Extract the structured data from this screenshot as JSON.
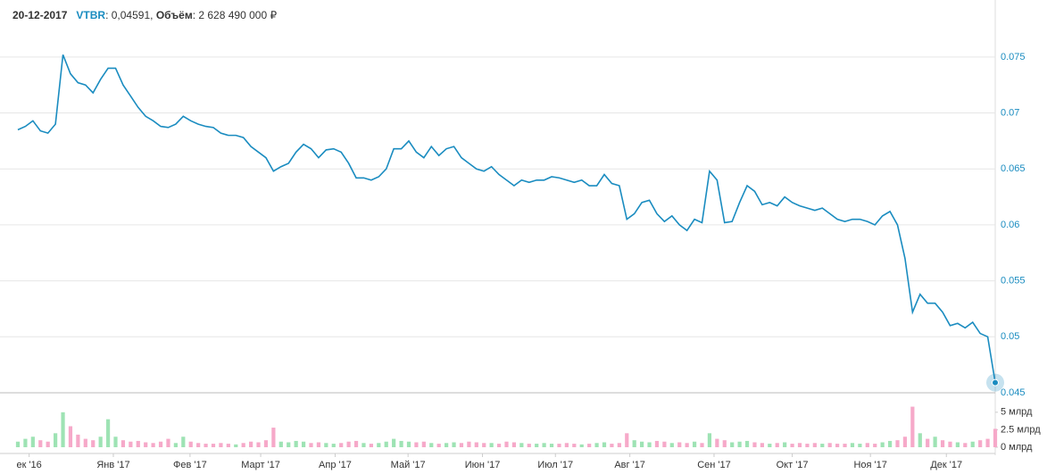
{
  "chart_data": {
    "type": "line",
    "header": {
      "date": "20-12-2017",
      "ticker": "VTBR",
      "price_text": ": 0,04591,",
      "volume_label": "Объём",
      "volume_text": ": 2 628 490 000 ₽"
    },
    "xlim": [
      0,
      130
    ],
    "xticks": [
      {
        "value": 1.5,
        "label": "ек '16"
      },
      {
        "value": 12.7,
        "label": "Янв '17"
      },
      {
        "value": 22.9,
        "label": "Фев '17"
      },
      {
        "value": 32.3,
        "label": "Март '17"
      },
      {
        "value": 42.2,
        "label": "Апр '17"
      },
      {
        "value": 51.9,
        "label": "Май '17"
      },
      {
        "value": 61.8,
        "label": "Июн '17"
      },
      {
        "value": 71.5,
        "label": "Июл '17"
      },
      {
        "value": 81.4,
        "label": "Авг '17"
      },
      {
        "value": 92.6,
        "label": "Сен '17"
      },
      {
        "value": 103,
        "label": "Окт '17"
      },
      {
        "value": 113.4,
        "label": "Ноя '17"
      },
      {
        "value": 123.5,
        "label": "Дек '17"
      }
    ],
    "ylim": [
      0.045,
      0.0777
    ],
    "yticks": [
      0.045,
      0.05,
      0.055,
      0.06,
      0.065,
      0.07,
      0.075
    ],
    "y2lim": [
      0,
      6
    ],
    "y2ticks": [
      {
        "value": 0,
        "label": "0 млрд"
      },
      {
        "value": 2.5,
        "label": "2.5 млрд"
      },
      {
        "value": 5,
        "label": "5 млрд"
      }
    ],
    "grid": true,
    "series": [
      {
        "color": "#1a8cc0",
        "values": [
          0.0685,
          0.0688,
          0.0693,
          0.0684,
          0.0682,
          0.069,
          0.0752,
          0.0735,
          0.0727,
          0.0725,
          0.0718,
          0.073,
          0.074,
          0.074,
          0.0725,
          0.0715,
          0.0705,
          0.0697,
          0.0693,
          0.0688,
          0.0687,
          0.069,
          0.0697,
          0.0693,
          0.069,
          0.0688,
          0.0687,
          0.0682,
          0.068,
          0.068,
          0.0678,
          0.067,
          0.0665,
          0.066,
          0.0648,
          0.0652,
          0.0655,
          0.0665,
          0.0672,
          0.0668,
          0.066,
          0.0667,
          0.0668,
          0.0665,
          0.0655,
          0.0642,
          0.0642,
          0.064,
          0.0643,
          0.065,
          0.0668,
          0.0668,
          0.0675,
          0.0665,
          0.066,
          0.067,
          0.0662,
          0.0668,
          0.067,
          0.066,
          0.0655,
          0.065,
          0.0648,
          0.0652,
          0.0645,
          0.064,
          0.0635,
          0.064,
          0.0638,
          0.064,
          0.064,
          0.0643,
          0.0642,
          0.064,
          0.0638,
          0.064,
          0.0635,
          0.0635,
          0.0645,
          0.0637,
          0.0635,
          0.0605,
          0.061,
          0.062,
          0.0622,
          0.061,
          0.0603,
          0.0608,
          0.06,
          0.0595,
          0.0605,
          0.0602,
          0.0648,
          0.064,
          0.0602,
          0.0603,
          0.062,
          0.0635,
          0.063,
          0.0618,
          0.062,
          0.0617,
          0.0625,
          0.062,
          0.0617,
          0.0615,
          0.0613,
          0.0615,
          0.061,
          0.0605,
          0.0603,
          0.0605,
          0.0605,
          0.0603,
          0.06,
          0.0608,
          0.0612,
          0.06,
          0.057,
          0.0522,
          0.0538,
          0.053,
          0.053,
          0.0522,
          0.051,
          0.0512,
          0.0508,
          0.0513,
          0.0503,
          0.05,
          0.04591
        ]
      },
      {
        "type": "bar",
        "axis": "y2",
        "up_color": "#9ee3b4",
        "down_color": "#f6a9c9",
        "values": [
          0.8,
          1.2,
          1.5,
          1.0,
          0.8,
          2.0,
          5.0,
          3.0,
          1.8,
          1.2,
          1.0,
          1.5,
          4.0,
          1.5,
          1.0,
          0.8,
          0.9,
          0.7,
          0.6,
          0.8,
          1.2,
          0.6,
          1.5,
          0.8,
          0.6,
          0.5,
          0.5,
          0.6,
          0.5,
          0.4,
          0.6,
          0.8,
          0.7,
          1.0,
          2.8,
          0.8,
          0.7,
          0.9,
          0.8,
          0.6,
          0.7,
          0.6,
          0.5,
          0.6,
          0.8,
          0.9,
          0.6,
          0.5,
          0.6,
          0.8,
          1.2,
          0.9,
          0.8,
          0.7,
          0.8,
          0.6,
          0.5,
          0.6,
          0.7,
          0.6,
          0.8,
          0.7,
          0.6,
          0.6,
          0.5,
          0.8,
          0.7,
          0.6,
          0.5,
          0.5,
          0.6,
          0.5,
          0.5,
          0.6,
          0.5,
          0.4,
          0.5,
          0.6,
          0.7,
          0.5,
          0.6,
          2.0,
          1.0,
          0.8,
          0.7,
          0.9,
          0.8,
          0.6,
          0.7,
          0.6,
          0.8,
          0.6,
          2.0,
          1.2,
          1.0,
          0.7,
          0.8,
          0.9,
          0.7,
          0.6,
          0.5,
          0.6,
          0.7,
          0.5,
          0.6,
          0.5,
          0.6,
          0.5,
          0.6,
          0.5,
          0.5,
          0.6,
          0.5,
          0.6,
          0.5,
          0.7,
          0.9,
          1.0,
          1.5,
          5.8,
          2.0,
          1.2,
          1.5,
          1.0,
          0.8,
          0.7,
          0.6,
          0.8,
          1.0,
          1.2,
          2.63
        ]
      }
    ]
  }
}
